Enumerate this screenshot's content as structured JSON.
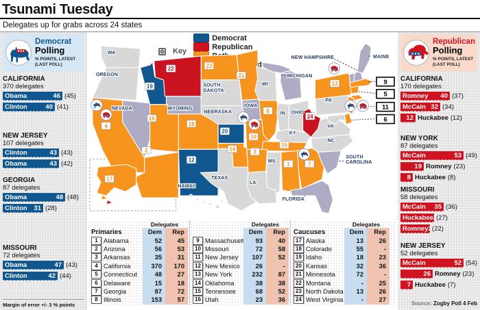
{
  "title": "Tsunami Tuesday",
  "subtitle": "Delegates up for grabs across 24 states",
  "colors": {
    "dem": "#10568F",
    "rep": "#CF1320",
    "both": "#F7941E",
    "voted": "#AEABC5",
    "plain": "#D8D8D8",
    "dem_light": "#C8DEF0",
    "rep_light": "#EFC3B0",
    "dem_box": "#D5E6F5",
    "rep_box": "#F9D9C9",
    "label": "#1E3D66"
  },
  "key": {
    "label": "Key",
    "items": [
      {
        "label": "Democrat",
        "type": "dem"
      },
      {
        "label": "Republican",
        "type": "rep"
      },
      {
        "label": "Both",
        "type": "both"
      },
      {
        "label": "Already voted",
        "type": "voted"
      }
    ]
  },
  "dem_polling": {
    "party": "Democrat",
    "title": "Polling",
    "sub1": "% POINTS, LATEST",
    "sub2": "(LAST POLL)",
    "footnote": "Margin of error +/- 3 % points",
    "states": [
      {
        "name": "CALIFORNIA",
        "delegates": "370 delegates",
        "bars": [
          {
            "name": "Obama",
            "value": 46,
            "last": "(45)",
            "inside": true
          },
          {
            "name": "Clinton",
            "value": 40,
            "last": "(41)",
            "inside": true
          }
        ]
      },
      {
        "name": "NEW JERSEY",
        "delegates": "107 delegates",
        "bars": [
          {
            "name": "Clinton",
            "value": 43,
            "last": "(43)",
            "inside": true
          },
          {
            "name": "Obama",
            "value": 43,
            "last": "(42)",
            "inside": true
          }
        ]
      },
      {
        "name": "GEORGIA",
        "delegates": "87 delegates",
        "bars": [
          {
            "name": "Obama",
            "value": 48,
            "last": "(48)",
            "inside": true
          },
          {
            "name": "Clinton",
            "value": 31,
            "last": "(28)",
            "inside": true
          }
        ]
      },
      {
        "name": "MISSOURI",
        "delegates": "72 delegates",
        "bars": [
          {
            "name": "Obama",
            "value": 47,
            "last": "(43)",
            "inside": true
          },
          {
            "name": "Clinton",
            "value": 42,
            "last": "(44)",
            "inside": true
          }
        ]
      }
    ]
  },
  "rep_polling": {
    "party": "Republican",
    "title": "Polling",
    "sub1": "% POINTS, LATEST",
    "sub2": "(LAST POLL)",
    "source_label": "Source:",
    "source": "Zogby Poll 4 Feb",
    "states": [
      {
        "name": "CALIFORNIA",
        "delegates": "170 delegates",
        "bars": [
          {
            "name": "Romney",
            "value": 40,
            "last": "(37)",
            "inside": true
          },
          {
            "name": "McCain",
            "value": 32,
            "last": "(34)",
            "inside": true
          },
          {
            "name": "Huckabee",
            "value": 12,
            "last": "(12)",
            "inside": false
          }
        ]
      },
      {
        "name": "NEW YORK",
        "delegates": "87 delegates",
        "bars": [
          {
            "name": "McCain",
            "value": 53,
            "last": "(49)",
            "inside": true
          },
          {
            "name": "Romney",
            "value": 19,
            "last": "(23)",
            "inside": false
          },
          {
            "name": "Huckabee",
            "value": 8,
            "last": "(8)",
            "inside": false
          }
        ]
      },
      {
        "name": "MISSOURI",
        "delegates": "58 delegates",
        "bars": [
          {
            "name": "McCain",
            "value": 35,
            "last": "(36)",
            "inside": true
          },
          {
            "name": "Huckabee",
            "value": 27,
            "last": "(27)",
            "inside": true
          },
          {
            "name": "Romney",
            "value": 24,
            "last": "(22)",
            "inside": true
          }
        ]
      },
      {
        "name": "NEW JERSEY",
        "delegates": "52 delegates",
        "bars": [
          {
            "name": "McCain",
            "value": 52,
            "last": "(54)",
            "inside": true
          },
          {
            "name": "Romney",
            "value": 26,
            "last": "(23)",
            "inside": false
          },
          {
            "name": "Huckabee",
            "value": 7,
            "last": "(7)",
            "inside": false
          }
        ]
      }
    ]
  },
  "map": {
    "states": [
      {
        "id": "wa",
        "type": "plain",
        "label": "WA"
      },
      {
        "id": "or",
        "type": "plain",
        "label": "OREGON"
      },
      {
        "id": "ca",
        "type": "both",
        "num": 4,
        "icons": [
          "dem",
          "rep"
        ]
      },
      {
        "id": "nv",
        "type": "voted",
        "label": "NEVADA"
      },
      {
        "id": "id",
        "type": "dem",
        "num": 19
      },
      {
        "id": "mt",
        "type": "rep",
        "num": 22
      },
      {
        "id": "wy",
        "type": "voted",
        "label": "WYOMING"
      },
      {
        "id": "ut",
        "type": "both",
        "num": 16
      },
      {
        "id": "co",
        "type": "both",
        "num": 18
      },
      {
        "id": "az",
        "type": "both",
        "num": 2
      },
      {
        "id": "nm",
        "type": "dem",
        "num": 12
      },
      {
        "id": "nd",
        "type": "both",
        "num": 23
      },
      {
        "id": "sd",
        "type": "plain",
        "label": "SOUTH DAKOTA"
      },
      {
        "id": "ne",
        "type": "plain",
        "label": "NEBRASKA"
      },
      {
        "id": "ks",
        "type": "dem",
        "num": 20
      },
      {
        "id": "ok",
        "type": "both",
        "num": 14
      },
      {
        "id": "tx",
        "type": "plain",
        "label": "TEXAS"
      },
      {
        "id": "mn",
        "type": "both",
        "num": 21
      },
      {
        "id": "ia",
        "type": "voted",
        "label": "IOWA"
      },
      {
        "id": "wi",
        "type": "plain",
        "label": "WI"
      },
      {
        "id": "mi",
        "type": "voted",
        "leader": "MICHIGAN"
      },
      {
        "id": "il",
        "type": "both",
        "num": 8
      },
      {
        "id": "in",
        "type": "plain",
        "label": "IN"
      },
      {
        "id": "oh",
        "type": "plain",
        "label": "OHIO"
      },
      {
        "id": "ky",
        "type": "plain",
        "label": "KY"
      },
      {
        "id": "mo",
        "type": "both",
        "num": 10,
        "icons": [
          "dem",
          "rep"
        ]
      },
      {
        "id": "tn",
        "type": "both",
        "num": 15
      },
      {
        "id": "ar",
        "type": "both",
        "num": 3
      },
      {
        "id": "ms",
        "type": "plain",
        "label": "MS"
      },
      {
        "id": "al",
        "type": "both",
        "num": 1
      },
      {
        "id": "ga",
        "type": "both",
        "num": 7,
        "icons": [
          "dem"
        ]
      },
      {
        "id": "la",
        "type": "plain",
        "label": "LA"
      },
      {
        "id": "fl",
        "type": "voted",
        "leader": "FLORIDA"
      },
      {
        "id": "sc",
        "type": "voted",
        "leader": "SOUTH CAROLINA"
      },
      {
        "id": "nc",
        "type": "plain",
        "label": "NC"
      },
      {
        "id": "va",
        "type": "plain",
        "label": "VA"
      },
      {
        "id": "wv",
        "type": "rep",
        "num": 24
      },
      {
        "id": "pa",
        "type": "plain",
        "label": "PA"
      },
      {
        "id": "ny",
        "type": "both",
        "num": 13,
        "icons": [
          "rep"
        ]
      },
      {
        "id": "vt",
        "type": "voted"
      },
      {
        "id": "nh",
        "type": "voted",
        "leader": "NEW HAMPSHIRE"
      },
      {
        "id": "me",
        "type": "voted",
        "leader": "MAINE"
      },
      {
        "id": "ma",
        "type": "both"
      },
      {
        "id": "ct",
        "type": "both"
      },
      {
        "id": "nj",
        "type": "both",
        "icons": [
          "dem",
          "rep"
        ]
      },
      {
        "id": "de",
        "type": "both"
      },
      {
        "id": "md",
        "type": "plain"
      },
      {
        "id": "ak",
        "type": "both",
        "num": 17
      },
      {
        "id": "hi",
        "type": "plain",
        "label": "HAWAII"
      }
    ],
    "callouts": [
      {
        "num": 9
      },
      {
        "num": 5
      },
      {
        "num": 11
      },
      {
        "num": 6
      }
    ]
  },
  "tables": {
    "meta": {
      "delegates": "Delegates",
      "dem": "Dem",
      "rep": "Rep"
    },
    "groups": [
      {
        "title": "Primaries",
        "rows": [
          [
            "1",
            "Alabama",
            "52",
            "45"
          ],
          [
            "2",
            "Arizona",
            "56",
            "53"
          ],
          [
            "3",
            "Arkansas",
            "35",
            "31"
          ],
          [
            "4",
            "California",
            "370",
            "170"
          ],
          [
            "5",
            "Connecticut",
            "48",
            "27"
          ],
          [
            "6",
            "Delaware",
            "15",
            "18"
          ],
          [
            "7",
            "Georgia",
            "87",
            "72"
          ],
          [
            "8",
            "Illinois",
            "153",
            "57"
          ]
        ]
      },
      {
        "title": "",
        "rows": [
          [
            "9",
            "Massachusetts",
            "93",
            "40"
          ],
          [
            "10",
            "Missouri",
            "72",
            "58"
          ],
          [
            "11",
            "New Jersey",
            "107",
            "52"
          ],
          [
            "12",
            "New Mexico",
            "26",
            "-"
          ],
          [
            "13",
            "New York",
            "232",
            "87"
          ],
          [
            "14",
            "Oklahoma",
            "38",
            "38"
          ],
          [
            "15",
            "Tennessee",
            "68",
            "52"
          ],
          [
            "16",
            "Utah",
            "23",
            "36"
          ]
        ]
      },
      {
        "title": "Caucuses",
        "rows": [
          [
            "17",
            "Alaska",
            "13",
            "26"
          ],
          [
            "18",
            "Colorado",
            "55",
            "-"
          ],
          [
            "19",
            "Idaho",
            "18",
            "23"
          ],
          [
            "20",
            "Kansas",
            "32",
            "36"
          ],
          [
            "21",
            "Minnesota",
            "72",
            "-"
          ],
          [
            "22",
            "Montana",
            "-",
            "25"
          ],
          [
            "23",
            "North Dakota",
            "13",
            "26"
          ],
          [
            "24",
            "West Virginia",
            "-",
            "27"
          ]
        ]
      }
    ]
  }
}
